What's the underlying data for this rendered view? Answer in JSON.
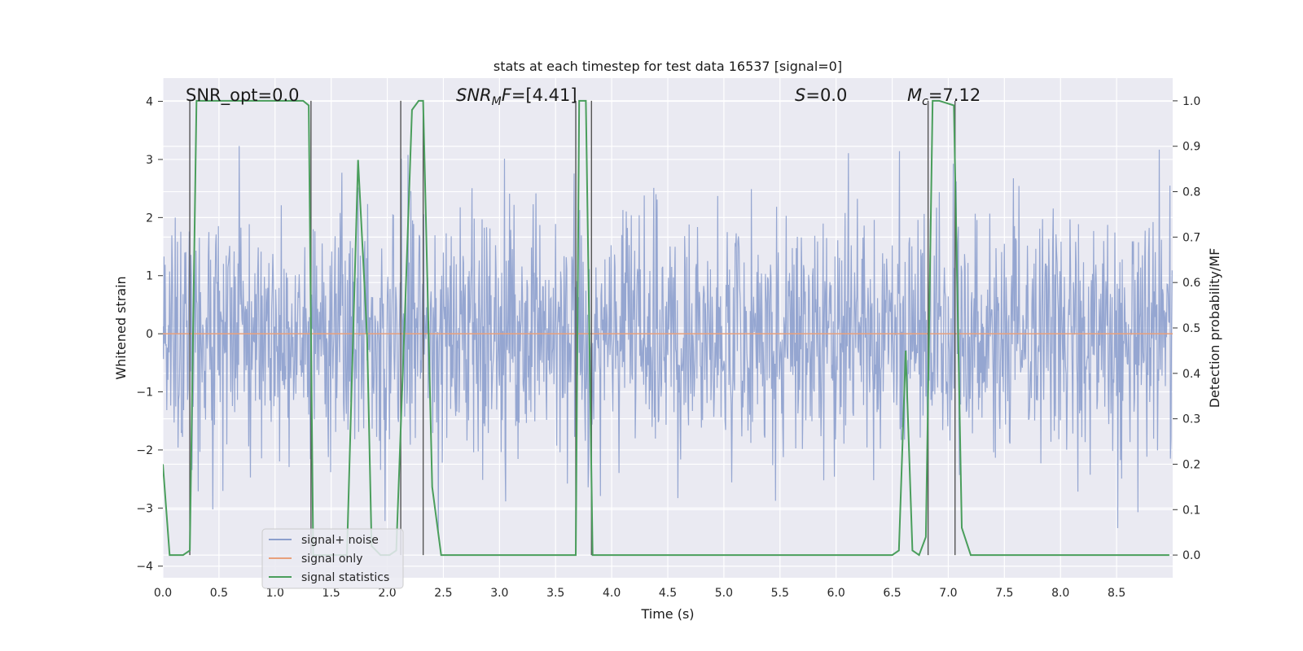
{
  "chart_data": {
    "type": "line",
    "title": "stats at each timestep for test data 16537 [signal=0]",
    "xlabel": "Time (s)",
    "ylabel": "Whitened strain",
    "ylabel_right": "Detection probability/MF",
    "xlim": [
      0.0,
      9.0
    ],
    "ylim": [
      -4.2,
      4.4
    ],
    "ylim_right": [
      -0.05,
      1.05
    ],
    "xticks": [
      "0.0",
      "0.5",
      "1.0",
      "1.5",
      "2.0",
      "2.5",
      "3.0",
      "3.5",
      "4.0",
      "4.5",
      "5.0",
      "5.5",
      "6.0",
      "6.5",
      "7.0",
      "7.5",
      "8.0",
      "8.5"
    ],
    "yticks": [
      "4",
      "3",
      "2",
      "1",
      "0",
      "−1",
      "−2",
      "−3",
      "−4"
    ],
    "yticks_right": [
      "1.0",
      "0.9",
      "0.8",
      "0.7",
      "0.6",
      "0.5",
      "0.4",
      "0.3",
      "0.2",
      "0.1",
      "0.0"
    ],
    "grid": true,
    "legend_position": "lower-left",
    "annotations": [
      {
        "text": "SNR_opt=0.0",
        "x": 0.2
      },
      {
        "text": "SNR_MF=[4.41]",
        "x": 2.6
      },
      {
        "text": "S=0.0",
        "x": 5.6
      },
      {
        "text": "M_c=7.12",
        "x": 6.6
      }
    ],
    "vertical_lines": [
      0.24,
      1.32,
      2.12,
      2.32,
      3.68,
      3.82,
      6.82,
      7.06
    ],
    "series": [
      {
        "name": "signal+ noise",
        "color": "#8c9fcd",
        "axis": "left",
        "description": "dense Gaussian-like noise, approximately ±2 with peaks up to ±3.8",
        "sample_rate": 200,
        "std": 1.05
      },
      {
        "name": "signal only",
        "color": "#e8a07c",
        "axis": "left",
        "x": [
          0.0,
          9.0
        ],
        "y": [
          0.0,
          0.0
        ]
      },
      {
        "name": "signal statistics",
        "color": "#4a9e5c",
        "axis": "right",
        "x": [
          0.0,
          0.06,
          0.18,
          0.24,
          0.3,
          0.36,
          1.25,
          1.3,
          1.34,
          1.42,
          1.52,
          1.64,
          1.74,
          1.82,
          1.86,
          1.94,
          2.02,
          2.08,
          2.16,
          2.22,
          2.28,
          2.32,
          2.4,
          2.48,
          3.68,
          3.71,
          3.77,
          3.83,
          3.86,
          3.94,
          6.5,
          6.56,
          6.62,
          6.68,
          6.74,
          6.8,
          6.86,
          6.92,
          7.05,
          7.12,
          7.2,
          8.97
        ],
        "y": [
          0.2,
          0.0,
          0.0,
          0.01,
          1.0,
          1.0,
          1.0,
          0.99,
          0.0,
          0.0,
          0.0,
          0.0,
          0.87,
          0.48,
          0.02,
          0.0,
          0.0,
          0.01,
          0.55,
          0.98,
          1.0,
          1.0,
          0.15,
          0.0,
          0.0,
          1.0,
          1.0,
          0.0,
          0.0,
          0.0,
          0.0,
          0.01,
          0.45,
          0.01,
          0.0,
          0.04,
          1.0,
          1.0,
          0.99,
          0.06,
          0.0,
          0.0
        ]
      }
    ]
  }
}
